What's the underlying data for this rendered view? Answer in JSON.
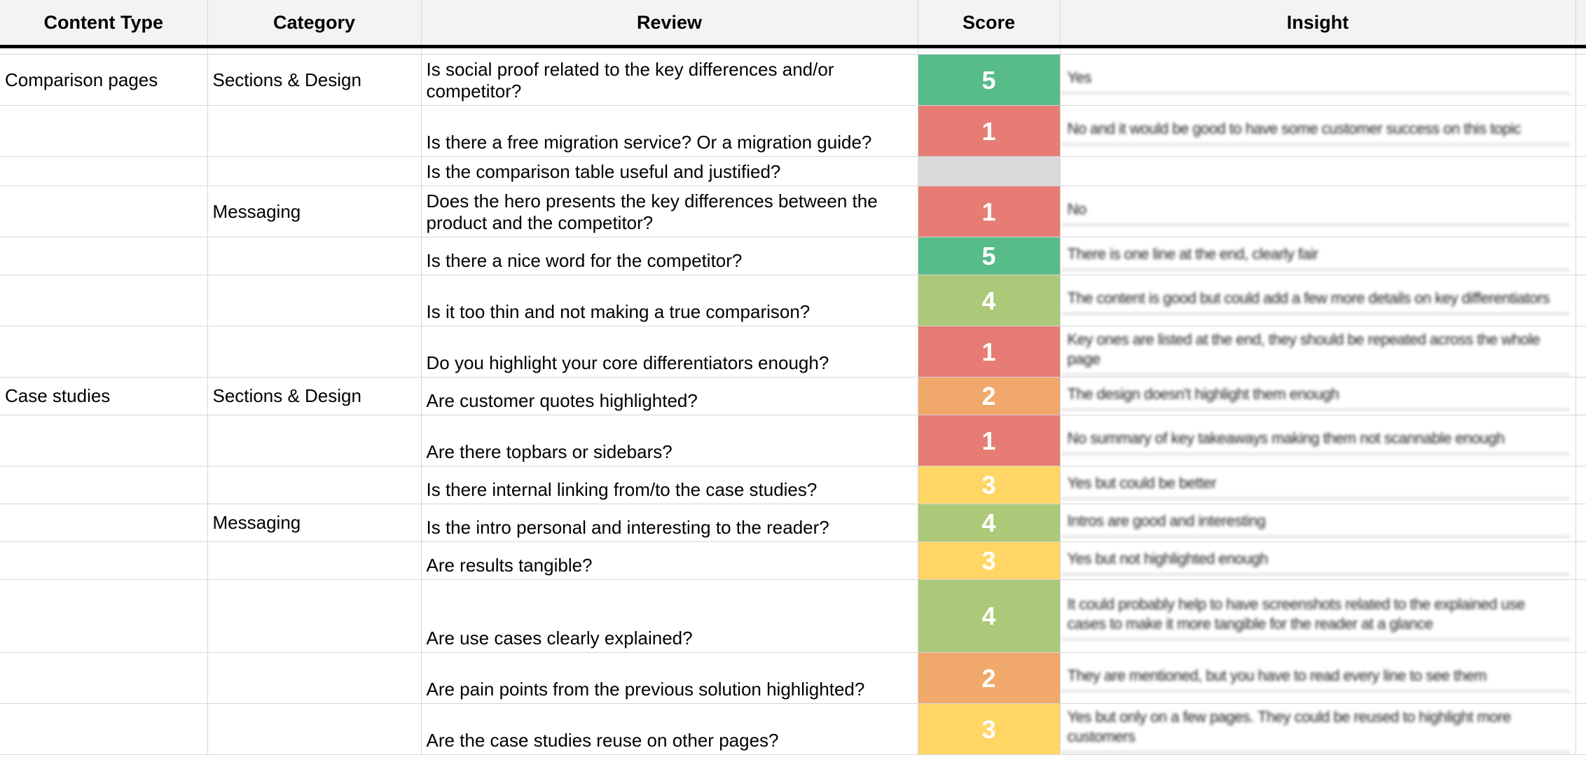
{
  "headers": {
    "content_type": "Content Type",
    "category": "Category",
    "review": "Review",
    "score": "Score",
    "insight": "Insight"
  },
  "score_colors": {
    "1": "#e67c73",
    "2": "#f0a96b",
    "3": "#ffd666",
    "4": "#abc978",
    "5": "#57bb8a",
    "empty": "#d9d9d9"
  },
  "rows": [
    {
      "content_type": "Comparison pages",
      "category": "Sections & Design",
      "review": "Is social proof related to the key differences and/or competitor?",
      "score": "5",
      "insight": "Yes"
    },
    {
      "content_type": "",
      "category": "",
      "review": "Is there a free migration service? Or a migration guide?",
      "score": "1",
      "insight": "No and it would be good to have some customer success on this topic"
    },
    {
      "content_type": "",
      "category": "",
      "review": "Is the comparison table useful and justified?",
      "score": "",
      "insight": ""
    },
    {
      "content_type": "",
      "category": "Messaging",
      "review": "Does the hero presents the key differences between the product and the competitor?",
      "score": "1",
      "insight": "No"
    },
    {
      "content_type": "",
      "category": "",
      "review": "Is there a nice word for the competitor?",
      "score": "5",
      "insight": "There is one line at the end, clearly fair"
    },
    {
      "content_type": "",
      "category": "",
      "review": "Is it too thin and not making a true comparison?",
      "score": "4",
      "insight": "The content is good but could add a few more details on key differentiators"
    },
    {
      "content_type": "",
      "category": "",
      "review": "Do you highlight your core differentiators enough?",
      "score": "1",
      "insight": "Key ones are listed at the end, they should be repeated across the whole page"
    },
    {
      "content_type": "Case studies",
      "category": "Sections & Design",
      "review": "Are customer quotes highlighted?",
      "score": "2",
      "insight": "The design doesn't highlight them enough"
    },
    {
      "content_type": "",
      "category": "",
      "review": "Are there topbars or sidebars?",
      "score": "1",
      "insight": "No summary of key takeaways making them not scannable enough"
    },
    {
      "content_type": "",
      "category": "",
      "review": "Is there internal linking from/to the case studies?",
      "score": "3",
      "insight": "Yes but could be better"
    },
    {
      "content_type": "",
      "category": "Messaging",
      "review": "Is the intro personal and interesting to the reader?",
      "score": "4",
      "insight": "Intros are good and interesting"
    },
    {
      "content_type": "",
      "category": "",
      "review": "Are results tangible?",
      "score": "3",
      "insight": "Yes but not highlighted enough"
    },
    {
      "content_type": "",
      "category": "",
      "review": "Are use cases clearly explained?",
      "score": "4",
      "insight": "It could probably help to have screenshots related to the explained use cases to make it more tangible for the reader at a glance"
    },
    {
      "content_type": "",
      "category": "",
      "review": "Are pain points from the previous solution highlighted?",
      "score": "2",
      "insight": "They are mentioned, but you have to read every line to see them"
    },
    {
      "content_type": "",
      "category": "",
      "review": "Are the case studies reuse on other pages?",
      "score": "3",
      "insight": "Yes but only on a few pages. They could be reused to highlight more customers"
    }
  ]
}
